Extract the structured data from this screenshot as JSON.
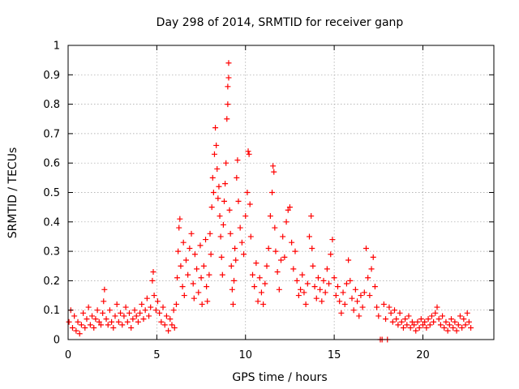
{
  "chart_data": {
    "type": "scatter",
    "title": "Day 298 of 2014, SRMTID for receiver ganp",
    "xlabel": "GPS time / hours",
    "ylabel": "SRMTID / TECUs",
    "xlim": [
      0,
      24
    ],
    "ylim": [
      0,
      1
    ],
    "xticks": [
      0,
      5,
      10,
      15,
      20
    ],
    "xtick_labels": [
      "0",
      "5",
      "10",
      "15",
      "20"
    ],
    "yticks": [
      0,
      0.1,
      0.2,
      0.3,
      0.4,
      0.5,
      0.6,
      0.7,
      0.8,
      0.9,
      1
    ],
    "ytick_labels": [
      "0",
      "0.1",
      "0.2",
      "0.3",
      "0.4",
      "0.5",
      "0.6",
      "0.7",
      "0.8",
      "0.9",
      "1"
    ],
    "grid": true,
    "marker": "+",
    "color": "#ff0000",
    "series": [
      {
        "name": "SRMTID",
        "points": [
          [
            0.05,
            0.06
          ],
          [
            0.15,
            0.1
          ],
          [
            0.25,
            0.04
          ],
          [
            0.35,
            0.08
          ],
          [
            0.45,
            0.03
          ],
          [
            0.55,
            0.06
          ],
          [
            0.65,
            0.02
          ],
          [
            0.75,
            0.05
          ],
          [
            0.85,
            0.09
          ],
          [
            0.95,
            0.04
          ],
          [
            1.05,
            0.07
          ],
          [
            1.15,
            0.11
          ],
          [
            1.25,
            0.05
          ],
          [
            1.35,
            0.08
          ],
          [
            1.45,
            0.04
          ],
          [
            1.55,
            0.07
          ],
          [
            1.65,
            0.1
          ],
          [
            1.75,
            0.06
          ],
          [
            1.85,
            0.05
          ],
          [
            1.95,
            0.09
          ],
          [
            2.0,
            0.13
          ],
          [
            2.05,
            0.17
          ],
          [
            2.15,
            0.07
          ],
          [
            2.25,
            0.05
          ],
          [
            2.35,
            0.1
          ],
          [
            2.45,
            0.06
          ],
          [
            2.55,
            0.04
          ],
          [
            2.65,
            0.08
          ],
          [
            2.75,
            0.12
          ],
          [
            2.85,
            0.06
          ],
          [
            2.95,
            0.09
          ],
          [
            3.05,
            0.05
          ],
          [
            3.15,
            0.08
          ],
          [
            3.25,
            0.11
          ],
          [
            3.35,
            0.06
          ],
          [
            3.45,
            0.09
          ],
          [
            3.55,
            0.04
          ],
          [
            3.65,
            0.07
          ],
          [
            3.75,
            0.1
          ],
          [
            3.85,
            0.08
          ],
          [
            3.95,
            0.06
          ],
          [
            4.05,
            0.09
          ],
          [
            4.15,
            0.12
          ],
          [
            4.25,
            0.07
          ],
          [
            4.35,
            0.1
          ],
          [
            4.45,
            0.14
          ],
          [
            4.55,
            0.08
          ],
          [
            4.65,
            0.11
          ],
          [
            4.75,
            0.2
          ],
          [
            4.8,
            0.23
          ],
          [
            4.85,
            0.15
          ],
          [
            4.95,
            0.1
          ],
          [
            5.05,
            0.13
          ],
          [
            5.15,
            0.09
          ],
          [
            5.25,
            0.06
          ],
          [
            5.35,
            0.11
          ],
          [
            5.45,
            0.05
          ],
          [
            5.55,
            0.08
          ],
          [
            5.65,
            0.03
          ],
          [
            5.75,
            0.07
          ],
          [
            5.85,
            0.05
          ],
          [
            5.95,
            0.1
          ],
          [
            6.0,
            0.04
          ],
          [
            6.1,
            0.12
          ],
          [
            6.15,
            0.21
          ],
          [
            6.2,
            0.3
          ],
          [
            6.25,
            0.38
          ],
          [
            6.3,
            0.41
          ],
          [
            6.35,
            0.25
          ],
          [
            6.45,
            0.18
          ],
          [
            6.5,
            0.33
          ],
          [
            6.55,
            0.15
          ],
          [
            6.65,
            0.27
          ],
          [
            6.75,
            0.22
          ],
          [
            6.85,
            0.31
          ],
          [
            6.95,
            0.36
          ],
          [
            7.05,
            0.19
          ],
          [
            7.1,
            0.14
          ],
          [
            7.15,
            0.29
          ],
          [
            7.25,
            0.24
          ],
          [
            7.35,
            0.16
          ],
          [
            7.45,
            0.32
          ],
          [
            7.5,
            0.21
          ],
          [
            7.55,
            0.12
          ],
          [
            7.65,
            0.25
          ],
          [
            7.75,
            0.34
          ],
          [
            7.8,
            0.18
          ],
          [
            7.85,
            0.13
          ],
          [
            7.95,
            0.22
          ],
          [
            8.0,
            0.36
          ],
          [
            8.05,
            0.29
          ],
          [
            8.1,
            0.45
          ],
          [
            8.15,
            0.55
          ],
          [
            8.2,
            0.5
          ],
          [
            8.25,
            0.63
          ],
          [
            8.3,
            0.72
          ],
          [
            8.35,
            0.66
          ],
          [
            8.4,
            0.58
          ],
          [
            8.45,
            0.48
          ],
          [
            8.5,
            0.52
          ],
          [
            8.55,
            0.42
          ],
          [
            8.6,
            0.35
          ],
          [
            8.65,
            0.28
          ],
          [
            8.7,
            0.22
          ],
          [
            8.75,
            0.39
          ],
          [
            8.8,
            0.47
          ],
          [
            8.85,
            0.53
          ],
          [
            8.9,
            0.6
          ],
          [
            8.95,
            0.75
          ],
          [
            9.0,
            0.8
          ],
          [
            9.0,
            0.86
          ],
          [
            9.05,
            0.89
          ],
          [
            9.05,
            0.94
          ],
          [
            9.1,
            0.44
          ],
          [
            9.15,
            0.36
          ],
          [
            9.2,
            0.25
          ],
          [
            9.25,
            0.17
          ],
          [
            9.3,
            0.12
          ],
          [
            9.35,
            0.2
          ],
          [
            9.4,
            0.31
          ],
          [
            9.45,
            0.27
          ],
          [
            9.5,
            0.55
          ],
          [
            9.55,
            0.61
          ],
          [
            9.6,
            0.47
          ],
          [
            9.7,
            0.38
          ],
          [
            9.8,
            0.33
          ],
          [
            9.9,
            0.29
          ],
          [
            10.0,
            0.42
          ],
          [
            10.1,
            0.5
          ],
          [
            10.15,
            0.64
          ],
          [
            10.2,
            0.63
          ],
          [
            10.25,
            0.46
          ],
          [
            10.3,
            0.35
          ],
          [
            10.4,
            0.22
          ],
          [
            10.5,
            0.18
          ],
          [
            10.6,
            0.26
          ],
          [
            10.7,
            0.13
          ],
          [
            10.8,
            0.21
          ],
          [
            10.9,
            0.16
          ],
          [
            11.0,
            0.12
          ],
          [
            11.1,
            0.19
          ],
          [
            11.2,
            0.25
          ],
          [
            11.3,
            0.31
          ],
          [
            11.4,
            0.42
          ],
          [
            11.5,
            0.5
          ],
          [
            11.55,
            0.59
          ],
          [
            11.6,
            0.57
          ],
          [
            11.65,
            0.38
          ],
          [
            11.7,
            0.3
          ],
          [
            11.8,
            0.23
          ],
          [
            11.9,
            0.17
          ],
          [
            12.0,
            0.27
          ],
          [
            12.1,
            0.35
          ],
          [
            12.2,
            0.28
          ],
          [
            12.3,
            0.4
          ],
          [
            12.4,
            0.44
          ],
          [
            12.5,
            0.45
          ],
          [
            12.6,
            0.33
          ],
          [
            12.7,
            0.24
          ],
          [
            12.8,
            0.3
          ],
          [
            12.9,
            0.2
          ],
          [
            13.0,
            0.15
          ],
          [
            13.1,
            0.17
          ],
          [
            13.2,
            0.22
          ],
          [
            13.3,
            0.16
          ],
          [
            13.4,
            0.12
          ],
          [
            13.5,
            0.19
          ],
          [
            13.6,
            0.35
          ],
          [
            13.7,
            0.42
          ],
          [
            13.75,
            0.31
          ],
          [
            13.8,
            0.25
          ],
          [
            13.9,
            0.18
          ],
          [
            14.0,
            0.14
          ],
          [
            14.1,
            0.21
          ],
          [
            14.2,
            0.17
          ],
          [
            14.3,
            0.13
          ],
          [
            14.4,
            0.2
          ],
          [
            14.5,
            0.16
          ],
          [
            14.6,
            0.24
          ],
          [
            14.7,
            0.19
          ],
          [
            14.8,
            0.29
          ],
          [
            14.9,
            0.34
          ],
          [
            15.0,
            0.21
          ],
          [
            15.1,
            0.15
          ],
          [
            15.2,
            0.18
          ],
          [
            15.3,
            0.13
          ],
          [
            15.4,
            0.09
          ],
          [
            15.5,
            0.16
          ],
          [
            15.6,
            0.12
          ],
          [
            15.7,
            0.19
          ],
          [
            15.8,
            0.27
          ],
          [
            15.9,
            0.2
          ],
          [
            16.0,
            0.14
          ],
          [
            16.1,
            0.1
          ],
          [
            16.2,
            0.17
          ],
          [
            16.3,
            0.13
          ],
          [
            16.4,
            0.08
          ],
          [
            16.5,
            0.15
          ],
          [
            16.6,
            0.11
          ],
          [
            16.7,
            0.16
          ],
          [
            16.8,
            0.31
          ],
          [
            16.9,
            0.21
          ],
          [
            17.0,
            0.15
          ],
          [
            17.1,
            0.24
          ],
          [
            17.2,
            0.28
          ],
          [
            17.3,
            0.18
          ],
          [
            17.4,
            0.11
          ],
          [
            17.5,
            0.08
          ],
          [
            17.6,
            0.0
          ],
          [
            17.7,
            0.0
          ],
          [
            17.8,
            0.12
          ],
          [
            17.9,
            0.07
          ],
          [
            18.0,
            0.0
          ],
          [
            18.1,
            0.11
          ],
          [
            18.2,
            0.09
          ],
          [
            18.3,
            0.06
          ],
          [
            18.4,
            0.1
          ],
          [
            18.5,
            0.07
          ],
          [
            18.6,
            0.05
          ],
          [
            18.7,
            0.09
          ],
          [
            18.8,
            0.06
          ],
          [
            18.9,
            0.04
          ],
          [
            19.0,
            0.07
          ],
          [
            19.1,
            0.05
          ],
          [
            19.2,
            0.08
          ],
          [
            19.3,
            0.04
          ],
          [
            19.4,
            0.06
          ],
          [
            19.5,
            0.05
          ],
          [
            19.6,
            0.03
          ],
          [
            19.7,
            0.06
          ],
          [
            19.8,
            0.04
          ],
          [
            19.9,
            0.07
          ],
          [
            20.0,
            0.05
          ],
          [
            20.1,
            0.06
          ],
          [
            20.2,
            0.04
          ],
          [
            20.3,
            0.07
          ],
          [
            20.4,
            0.05
          ],
          [
            20.5,
            0.08
          ],
          [
            20.6,
            0.06
          ],
          [
            20.7,
            0.09
          ],
          [
            20.8,
            0.11
          ],
          [
            20.9,
            0.07
          ],
          [
            21.0,
            0.05
          ],
          [
            21.1,
            0.08
          ],
          [
            21.2,
            0.04
          ],
          [
            21.3,
            0.06
          ],
          [
            21.4,
            0.03
          ],
          [
            21.5,
            0.05
          ],
          [
            21.6,
            0.07
          ],
          [
            21.7,
            0.04
          ],
          [
            21.8,
            0.06
          ],
          [
            21.9,
            0.03
          ],
          [
            22.0,
            0.05
          ],
          [
            22.1,
            0.08
          ],
          [
            22.2,
            0.04
          ],
          [
            22.3,
            0.07
          ],
          [
            22.4,
            0.05
          ],
          [
            22.5,
            0.09
          ],
          [
            22.6,
            0.06
          ],
          [
            22.7,
            0.04
          ]
        ]
      }
    ]
  }
}
